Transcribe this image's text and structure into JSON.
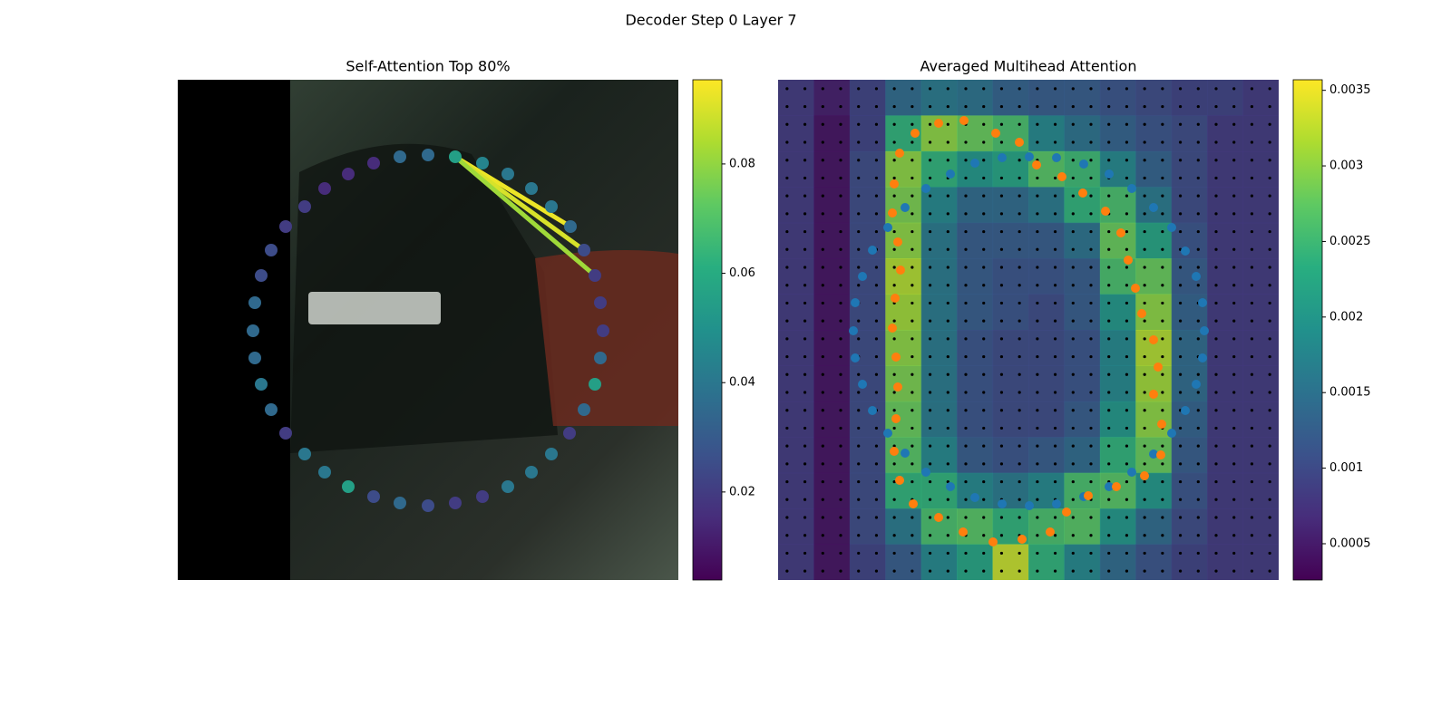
{
  "title": "Decoder Step 0 Layer 7",
  "chart_data": [
    {
      "type": "scatter",
      "title": "Self-Attention Top 80%",
      "colormap": "viridis",
      "xlim": [
        0,
        552
      ],
      "ylim": [
        552,
        0
      ],
      "clim": [
        0.0039,
        0.0954
      ],
      "cticks": [
        0.02,
        0.04,
        0.06,
        0.08
      ],
      "points": {
        "x": [
          306,
          336,
          364,
          390,
          412,
          433,
          448,
          460,
          466,
          469,
          466,
          460,
          448,
          432,
          412,
          390,
          364,
          336,
          306,
          276,
          245,
          216,
          188,
          162,
          140,
          119,
          103,
          92,
          85,
          83,
          85,
          92,
          103,
          119,
          140,
          162,
          188,
          216,
          245,
          276
        ],
        "y": [
          85,
          92,
          104,
          120,
          140,
          162,
          188,
          216,
          246,
          277,
          307,
          336,
          364,
          390,
          413,
          433,
          449,
          460,
          467,
          470,
          467,
          460,
          449,
          433,
          413,
          390,
          364,
          336,
          307,
          277,
          246,
          216,
          188,
          162,
          140,
          120,
          104,
          92,
          85,
          83
        ],
        "values": [
          0.055,
          0.045,
          0.04,
          0.04,
          0.04,
          0.035,
          0.025,
          0.02,
          0.02,
          0.02,
          0.035,
          0.055,
          0.035,
          0.02,
          0.04,
          0.04,
          0.04,
          0.02,
          0.02,
          0.025,
          0.035,
          0.025,
          0.055,
          0.04,
          0.04,
          0.02,
          0.035,
          0.04,
          0.035,
          0.035,
          0.035,
          0.025,
          0.025,
          0.02,
          0.02,
          0.015,
          0.015,
          0.015,
          0.035,
          0.035
        ]
      },
      "links": {
        "from": [
          0,
          0,
          0
        ],
        "to": [
          5,
          6,
          7
        ],
        "values": [
          0.093,
          0.09,
          0.082
        ]
      }
    },
    {
      "type": "heatmap",
      "title": "Averaged Multihead Attention",
      "colormap": "viridis",
      "xlim": [
        0,
        552
      ],
      "ylim": [
        552,
        0
      ],
      "clim": [
        0.00026,
        0.00357
      ],
      "cticks": [
        0.0005,
        0.001,
        0.0015,
        0.002,
        0.0025,
        0.003,
        0.0035
      ],
      "z": [
        [
          0.0008,
          0.0005,
          0.0009,
          0.0014,
          0.0016,
          0.0015,
          0.0013,
          0.0012,
          0.0012,
          0.0011,
          0.001,
          0.0009,
          0.0009,
          0.0008
        ],
        [
          0.0008,
          0.0004,
          0.0009,
          0.0024,
          0.003,
          0.0028,
          0.0026,
          0.0018,
          0.0015,
          0.0013,
          0.0011,
          0.001,
          0.0008,
          0.0008
        ],
        [
          0.0008,
          0.0004,
          0.001,
          0.003,
          0.0024,
          0.002,
          0.0022,
          0.0027,
          0.0025,
          0.0018,
          0.0013,
          0.001,
          0.0008,
          0.0008
        ],
        [
          0.0008,
          0.0004,
          0.001,
          0.0029,
          0.0018,
          0.0014,
          0.0014,
          0.0016,
          0.0024,
          0.0026,
          0.0016,
          0.001,
          0.0008,
          0.0008
        ],
        [
          0.0008,
          0.0004,
          0.001,
          0.003,
          0.0016,
          0.0012,
          0.0012,
          0.0012,
          0.0015,
          0.0028,
          0.0022,
          0.0011,
          0.0008,
          0.0008
        ],
        [
          0.0008,
          0.0004,
          0.001,
          0.0032,
          0.0016,
          0.0012,
          0.0011,
          0.0011,
          0.0012,
          0.0026,
          0.0028,
          0.0012,
          0.0008,
          0.0008
        ],
        [
          0.0008,
          0.0004,
          0.001,
          0.0031,
          0.0016,
          0.0012,
          0.0011,
          0.001,
          0.0012,
          0.002,
          0.003,
          0.0013,
          0.0008,
          0.0008
        ],
        [
          0.0008,
          0.0004,
          0.001,
          0.003,
          0.0016,
          0.0011,
          0.001,
          0.001,
          0.0011,
          0.0018,
          0.0032,
          0.0014,
          0.0008,
          0.0008
        ],
        [
          0.0008,
          0.0004,
          0.001,
          0.0029,
          0.0016,
          0.0011,
          0.001,
          0.001,
          0.0011,
          0.0018,
          0.0031,
          0.0014,
          0.0008,
          0.0008
        ],
        [
          0.0008,
          0.0004,
          0.001,
          0.0028,
          0.0016,
          0.0011,
          0.001,
          0.001,
          0.0012,
          0.002,
          0.003,
          0.0013,
          0.0008,
          0.0008
        ],
        [
          0.0008,
          0.0004,
          0.001,
          0.0027,
          0.0018,
          0.0012,
          0.0011,
          0.0012,
          0.0014,
          0.0024,
          0.0028,
          0.0012,
          0.0008,
          0.0008
        ],
        [
          0.0008,
          0.0004,
          0.001,
          0.0024,
          0.0024,
          0.0018,
          0.0016,
          0.0018,
          0.0026,
          0.0027,
          0.002,
          0.0011,
          0.0008,
          0.0008
        ],
        [
          0.0008,
          0.0004,
          0.001,
          0.0016,
          0.0026,
          0.0027,
          0.0024,
          0.0026,
          0.0027,
          0.002,
          0.0014,
          0.001,
          0.0008,
          0.0008
        ],
        [
          0.0008,
          0.0004,
          0.0009,
          0.0012,
          0.0018,
          0.0022,
          0.0033,
          0.0024,
          0.0018,
          0.0014,
          0.0011,
          0.0009,
          0.0008,
          0.0008
        ]
      ],
      "series": [
        {
          "color": "#1f77b4",
          "x": [
            217,
            247,
            277,
            307,
            337,
            365,
            390,
            414,
            434,
            449,
            461,
            468,
            470,
            468,
            461,
            449,
            434,
            414,
            390,
            365,
            337,
            307,
            277,
            247,
            217,
            190,
            163,
            140,
            121,
            104,
            93,
            85,
            83,
            85,
            93,
            104,
            121,
            140,
            163,
            190
          ],
          "y": [
            92,
            86,
            85,
            86,
            93,
            104,
            120,
            141,
            163,
            189,
            217,
            246,
            277,
            307,
            336,
            365,
            390,
            413,
            433,
            449,
            460,
            468,
            470,
            468,
            461,
            449,
            433,
            412,
            390,
            365,
            336,
            307,
            277,
            246,
            217,
            188,
            163,
            141,
            120,
            104
          ]
        },
        {
          "color": "#ff7f0e",
          "x": [
            177,
            205,
            240,
            266,
            285,
            313,
            336,
            361,
            378,
            386,
            394,
            401,
            414,
            419,
            414,
            423,
            422,
            404,
            373,
            342,
            318,
            300,
            269,
            237,
            204,
            177,
            149,
            134,
            128,
            130,
            132,
            130,
            126,
            129,
            135,
            132,
            126,
            128,
            134,
            151
          ],
          "y": [
            48,
            45,
            59,
            69,
            94,
            107,
            125,
            145,
            169,
            199,
            230,
            258,
            287,
            317,
            347,
            380,
            414,
            437,
            449,
            459,
            477,
            499,
            507,
            510,
            499,
            483,
            468,
            442,
            410,
            374,
            339,
            306,
            274,
            241,
            210,
            179,
            147,
            115,
            81,
            59
          ]
        }
      ]
    }
  ]
}
